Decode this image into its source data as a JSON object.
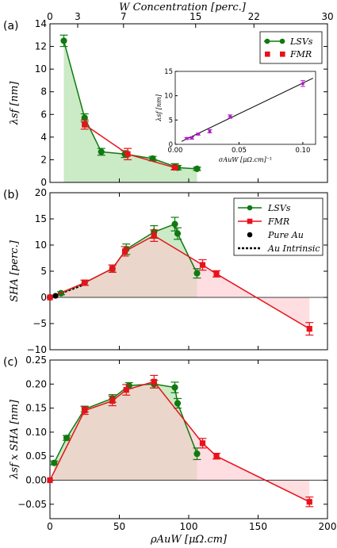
{
  "colors": {
    "lsv": "#0f7a0f",
    "fmr": "#e8121b",
    "lsv_fill": "#a8dca0",
    "fmr_fill": "#ffc8cf",
    "pure": "#000000",
    "insetMarker": "#b020c8",
    "insetLine": "#000000"
  },
  "chart_data": [
    {
      "id": "a",
      "panel_label": "(a)",
      "type": "line",
      "ylabel": "λsf [nm]",
      "top_xlabel": "W Concentration [perc.]",
      "top_xticks": [
        "0",
        "3",
        "7",
        "15",
        "22",
        "30"
      ],
      "top_xtick_pos": [
        0,
        20,
        53,
        105,
        147,
        200
      ],
      "xlim": [
        0,
        200
      ],
      "ylim": [
        0,
        14
      ],
      "yticks": [
        "0",
        "2",
        "4",
        "6",
        "8",
        "10",
        "12",
        "14"
      ],
      "legend": [
        "LSVs",
        "FMR"
      ],
      "series": [
        {
          "name": "LSVs",
          "style": "lsv",
          "fill": "lsv_fill",
          "x": [
            10,
            25,
            37,
            54,
            74,
            90,
            92,
            106
          ],
          "y": [
            12.5,
            5.7,
            2.7,
            2.5,
            2.1,
            1.4,
            1.3,
            1.2
          ],
          "err": [
            0.5,
            0.35,
            0.3,
            0.3,
            0.2,
            0.25,
            0.2,
            0.15
          ]
        },
        {
          "name": "FMR",
          "style": "fmr",
          "fill": null,
          "x": [
            25,
            56,
            90
          ],
          "y": [
            5.1,
            2.5,
            1.3
          ],
          "err": [
            0.4,
            0.5,
            0.2
          ]
        }
      ],
      "inset": {
        "xlabel": "σAuW [μΩ.cm]⁻¹",
        "ylabel": "λsf [nm]",
        "xlim": [
          0,
          0.11
        ],
        "ylim": [
          0,
          15
        ],
        "xticks": [
          "0.00",
          "0.05",
          "0.10"
        ],
        "xtick_vals": [
          0,
          0.05,
          0.1
        ],
        "yticks": [
          "0",
          "5",
          "10",
          "15"
        ],
        "ytick_vals": [
          0,
          5,
          10,
          15
        ],
        "points": {
          "x": [
            0.009,
            0.013,
            0.018,
            0.027,
            0.043,
            0.1
          ],
          "y": [
            1.2,
            1.3,
            2.1,
            2.7,
            5.7,
            12.5
          ],
          "err": [
            0.2,
            0.25,
            0.2,
            0.35,
            0.35,
            0.6
          ]
        },
        "fit": {
          "x": [
            0.005,
            0.108
          ],
          "y": [
            0.6,
            13.6
          ]
        }
      }
    },
    {
      "id": "b",
      "panel_label": "(b)",
      "type": "line",
      "ylabel": "SHA [perc.]",
      "xlim": [
        0,
        200
      ],
      "ylim": [
        -10,
        20
      ],
      "yticks": [
        "−10",
        "−5",
        "0",
        "5",
        "10",
        "15",
        "20"
      ],
      "legend": [
        "LSVs",
        "FMR",
        "Pure Au",
        "Au Intrinsic"
      ],
      "series": [
        {
          "name": "LSVs",
          "style": "lsv",
          "fill": "lsv_fill",
          "x": [
            0,
            8,
            25,
            45,
            55,
            75,
            90,
            92,
            106
          ],
          "y": [
            0,
            0.8,
            2.8,
            5.5,
            9.2,
            12.5,
            14,
            12.2,
            4.6
          ],
          "err": [
            0,
            0.3,
            0.5,
            0.7,
            1.0,
            1.2,
            1.3,
            1.1,
            0.9
          ]
        },
        {
          "name": "FMR",
          "style": "fmr",
          "fill": "fmr_fill",
          "x": [
            0,
            25,
            45,
            54,
            75,
            110,
            120,
            187
          ],
          "y": [
            0,
            2.8,
            5.5,
            8.8,
            11.8,
            6.2,
            4.5,
            -6
          ],
          "err": [
            0,
            0.5,
            0.7,
            0.9,
            1.1,
            1.0,
            0.6,
            1.2
          ]
        }
      ],
      "pure_au": {
        "x": [
          4
        ],
        "y": [
          0.3
        ]
      },
      "au_intrinsic": {
        "x": [
          0,
          25
        ],
        "y": [
          0,
          2.5
        ]
      }
    },
    {
      "id": "c",
      "panel_label": "(c)",
      "type": "line",
      "ylabel": "λsf x SHA [nm]",
      "xlabel": "ρAuW [μΩ.cm]",
      "xlim": [
        0,
        200
      ],
      "ylim": [
        -0.08,
        0.25
      ],
      "xticks": [
        "0",
        "50",
        "100",
        "150",
        "200"
      ],
      "xtick_vals": [
        0,
        50,
        100,
        150,
        200
      ],
      "yticks": [
        "−0.05",
        "0.00",
        "0.05",
        "0.10",
        "0.15",
        "0.20",
        "0.25"
      ],
      "ytick_vals": [
        -0.05,
        0,
        0.05,
        0.1,
        0.15,
        0.2,
        0.25
      ],
      "series": [
        {
          "name": "LSVs",
          "style": "lsv",
          "fill": "lsv_fill",
          "x": [
            3,
            12,
            25,
            45,
            57,
            75,
            90,
            92,
            106
          ],
          "y": [
            0.036,
            0.088,
            0.148,
            0.17,
            0.197,
            0.2,
            0.193,
            0.16,
            0.055
          ],
          "err": [
            0.004,
            0.005,
            0.006,
            0.008,
            0.006,
            0.008,
            0.011,
            0.01,
            0.012
          ]
        },
        {
          "name": "FMR",
          "style": "fmr",
          "fill": "fmr_fill",
          "x": [
            0,
            25,
            45,
            55,
            75,
            110,
            120,
            187
          ],
          "y": [
            0,
            0.145,
            0.165,
            0.188,
            0.205,
            0.077,
            0.05,
            -0.045
          ],
          "err": [
            0,
            0.008,
            0.01,
            0.011,
            0.013,
            0.01,
            0.006,
            0.01
          ]
        }
      ]
    }
  ]
}
